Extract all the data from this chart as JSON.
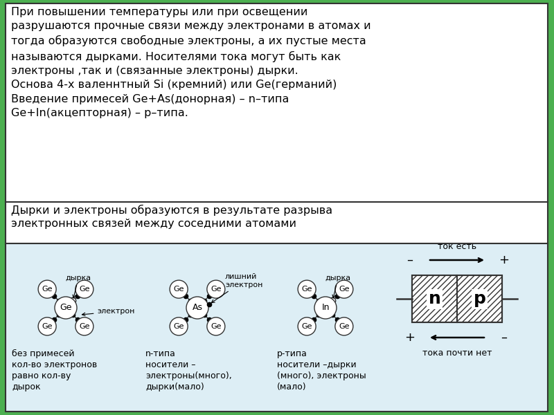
{
  "bg_outer": "#4caf50",
  "bg_top_box": "#ffffff",
  "bg_bottom_box": "#ddeef5",
  "border_color": "#333333",
  "text_color": "#000000",
  "top_text": "При повышении температуры или при освещении\nразрушаются прочные связи между электронами в атомах и\nтогда образуются свободные электроны, а их пустые места\nназываются дырками. Носителями тока могут быть как\nэлектроны ,так и (связанные электроны) дырки.\nОснова 4-х валеннтный Si (кремний) или Ge(германий)\nВведение примесей Ge+As(донорная) – n–типа\nGe+In(акцепторная) – р–типа.",
  "subtitle_text": "Дырки и электроны образуются в результате разрыва\nэлектронных связей между соседними атомами",
  "label1_top": "дырка",
  "label1_center": "электрон",
  "label1_bottom": "без примесей\nкол-во электронов\nравно кол-ву\nдырок",
  "label2_right": "лишний\nэлектрон",
  "label2_bottom": "n-типа\nносители –\nэлектроны(много),\nдырки(мало)",
  "label3_top": "дырка",
  "label3_bottom": "р-типа\nносители –дырки\n(много), электроны\n(мало)",
  "label4_top": "ток есть",
  "label4_bottom": "тока почти нет",
  "label_n": "n",
  "label_p": "p",
  "atom_ge": "Ge",
  "atom_as": "As",
  "atom_in": "In",
  "fig_width": 8.0,
  "fig_height": 6.0,
  "dpi": 100
}
